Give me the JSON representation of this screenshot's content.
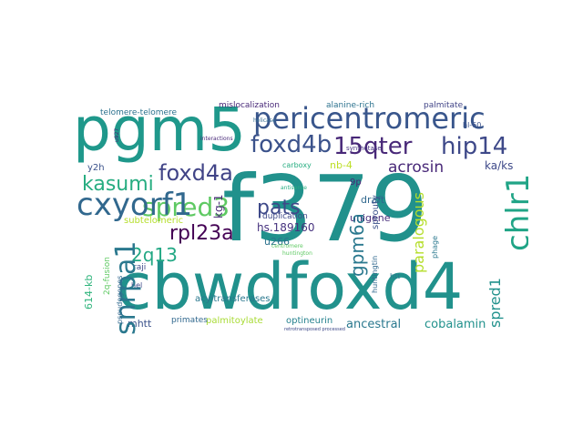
{
  "cloud": {
    "words": {
      "f379": {
        "text": "f379",
        "color": "#21918c"
      },
      "cbwdfoxd4": {
        "text": "cbwdfoxd4",
        "color": "#21918c"
      },
      "pgm5": {
        "text": "pgm5",
        "color": "#1f988b"
      },
      "pericentromeric": {
        "text": "pericentromeric",
        "color": "#39568c"
      },
      "foxd4b": {
        "text": "foxd4b",
        "color": "#3b528b"
      },
      "hip14": {
        "text": "hip14",
        "color": "#3e4989"
      },
      "qter": {
        "text": "15qter",
        "color": "#482878"
      },
      "foxd4a": {
        "text": "foxd4a",
        "color": "#414487"
      },
      "acrosin": {
        "text": "acrosin",
        "color": "#482878"
      },
      "kasumi": {
        "text": "kasumi",
        "color": "#27ad81"
      },
      "spred3": {
        "text": "spred3",
        "color": "#5ec962"
      },
      "cxyorf1": {
        "text": "cxyorf1",
        "color": "#31688e"
      },
      "chlr1": {
        "text": "chlr1",
        "color": "#20a486"
      },
      "snrpa1": {
        "text": "snrpa1",
        "color": "#2a788e"
      },
      "rpl23a": {
        "text": "rpl23a",
        "color": "#440154"
      },
      "pats": {
        "text": "pats",
        "color": "#3e4989"
      },
      "2q13": {
        "text": "2q13",
        "color": "#22a884"
      },
      "gpm6a": {
        "text": "gpm6a",
        "color": "#2a788e"
      },
      "paralogous": {
        "text": "paralogous",
        "color": "#b5de2b"
      },
      "spred1": {
        "text": "spred1",
        "color": "#21918c"
      },
      "kaks": {
        "text": "ka/ks",
        "color": "#3e4989"
      },
      "kg": {
        "text": "kg-1",
        "color": "#482878"
      },
      "nb4": {
        "text": "nb-4",
        "color": "#bddf26"
      },
      "hs189160": {
        "text": "hs.189160",
        "color": "#46327e"
      },
      "u266": {
        "text": "u266",
        "color": "#2c728e"
      },
      "ancestral": {
        "text": "ancestral",
        "color": "#2a788e"
      },
      "cobalamin": {
        "text": "cobalamin",
        "color": "#21918c"
      },
      "optineurin": {
        "text": "optineurin",
        "color": "#26828e"
      },
      "palmitoylate": {
        "text": "palmitoylate",
        "color": "#a8db34"
      },
      "acyltransferases": {
        "text": "acyltransferases",
        "color": "#2a788e"
      },
      "primates": {
        "text": "primates",
        "color": "#31688e"
      },
      "mhtt": {
        "text": "mhtt",
        "color": "#3b528b"
      },
      "kb614": {
        "text": "614-kb",
        "color": "#2fb47c"
      },
      "subtelomeric": {
        "text": "subtelomeric",
        "color": "#b5de2b"
      },
      "telomere": {
        "text": "telomere-telomere",
        "color": "#2c728e"
      },
      "mislocalization": {
        "text": "mislocalization",
        "color": "#482878"
      },
      "alanine": {
        "text": "alanine-rich",
        "color": "#2c728e"
      },
      "palmitate": {
        "text": "palmitate",
        "color": "#414487"
      },
      "hl60": {
        "text": "hl-60",
        "color": "#3b528b"
      },
      "unigene": {
        "text": "unigene",
        "color": "#472d7b"
      },
      "draft": {
        "text": "draft",
        "color": "#31688e"
      },
      "sprouty": {
        "text": "sprouty",
        "color": "#3b528b"
      },
      "huntingtin": {
        "text": "huntingtin",
        "color": "#31688e"
      },
      "phage": {
        "text": "phage",
        "color": "#2a788e"
      },
      "duplication": {
        "text": "duplication",
        "color": "#3e4989"
      },
      "carboxy": {
        "text": "carboxy",
        "color": "#27ad81"
      },
      "nb9p": {
        "text": "9p",
        "color": "#482878"
      },
      "y2h": {
        "text": "y2h",
        "color": "#3b528b"
      },
      "fusion2q": {
        "text": "2q-fusion",
        "color": "#5ec962"
      },
      "raji": {
        "text": "raji",
        "color": "#3e4989"
      },
      "pseudogenes": {
        "text": "pseudogenes",
        "color": "#31688e"
      },
      "synthetase": {
        "text": "synthetase",
        "color": "#46327e"
      },
      "centromere": {
        "text": "centromere",
        "color": "#5ec962"
      },
      "interactions": {
        "text": "interactions",
        "color": "#482878"
      },
      "htt": {
        "text": "htt",
        "color": "#2a788e"
      },
      "hel": {
        "text": "hel",
        "color": "#3e4989"
      },
      "u927": {
        "text": "u927",
        "color": "#482878"
      },
      "antisense": {
        "text": "antisense",
        "color": "#27ad81"
      },
      "helicase": {
        "text": "helicase",
        "color": "#31688e"
      },
      "huntington": {
        "text": "huntington",
        "color": "#5ec962"
      },
      "retrotransposed": {
        "text": "retrotransposed processed",
        "color": "#3e4989"
      }
    }
  }
}
